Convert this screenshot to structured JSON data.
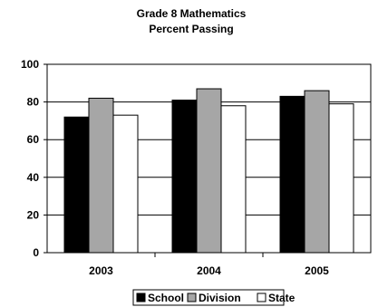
{
  "chart_data": {
    "type": "bar",
    "title": "Grade 8 Mathematics",
    "subtitle": "Percent Passing",
    "categories": [
      "2003",
      "2004",
      "2005"
    ],
    "series": [
      {
        "name": "School",
        "values": [
          72,
          81,
          83
        ],
        "color": "#000000"
      },
      {
        "name": "Division",
        "values": [
          82,
          87,
          86
        ],
        "color": "#a6a6a6"
      },
      {
        "name": "State",
        "values": [
          73,
          78,
          79
        ],
        "color": "#ffffff"
      }
    ],
    "ylim": [
      0,
      100
    ],
    "yticks": [
      "0",
      "20",
      "40",
      "60",
      "80",
      "100"
    ],
    "grid": true,
    "legend_position": "bottom"
  }
}
